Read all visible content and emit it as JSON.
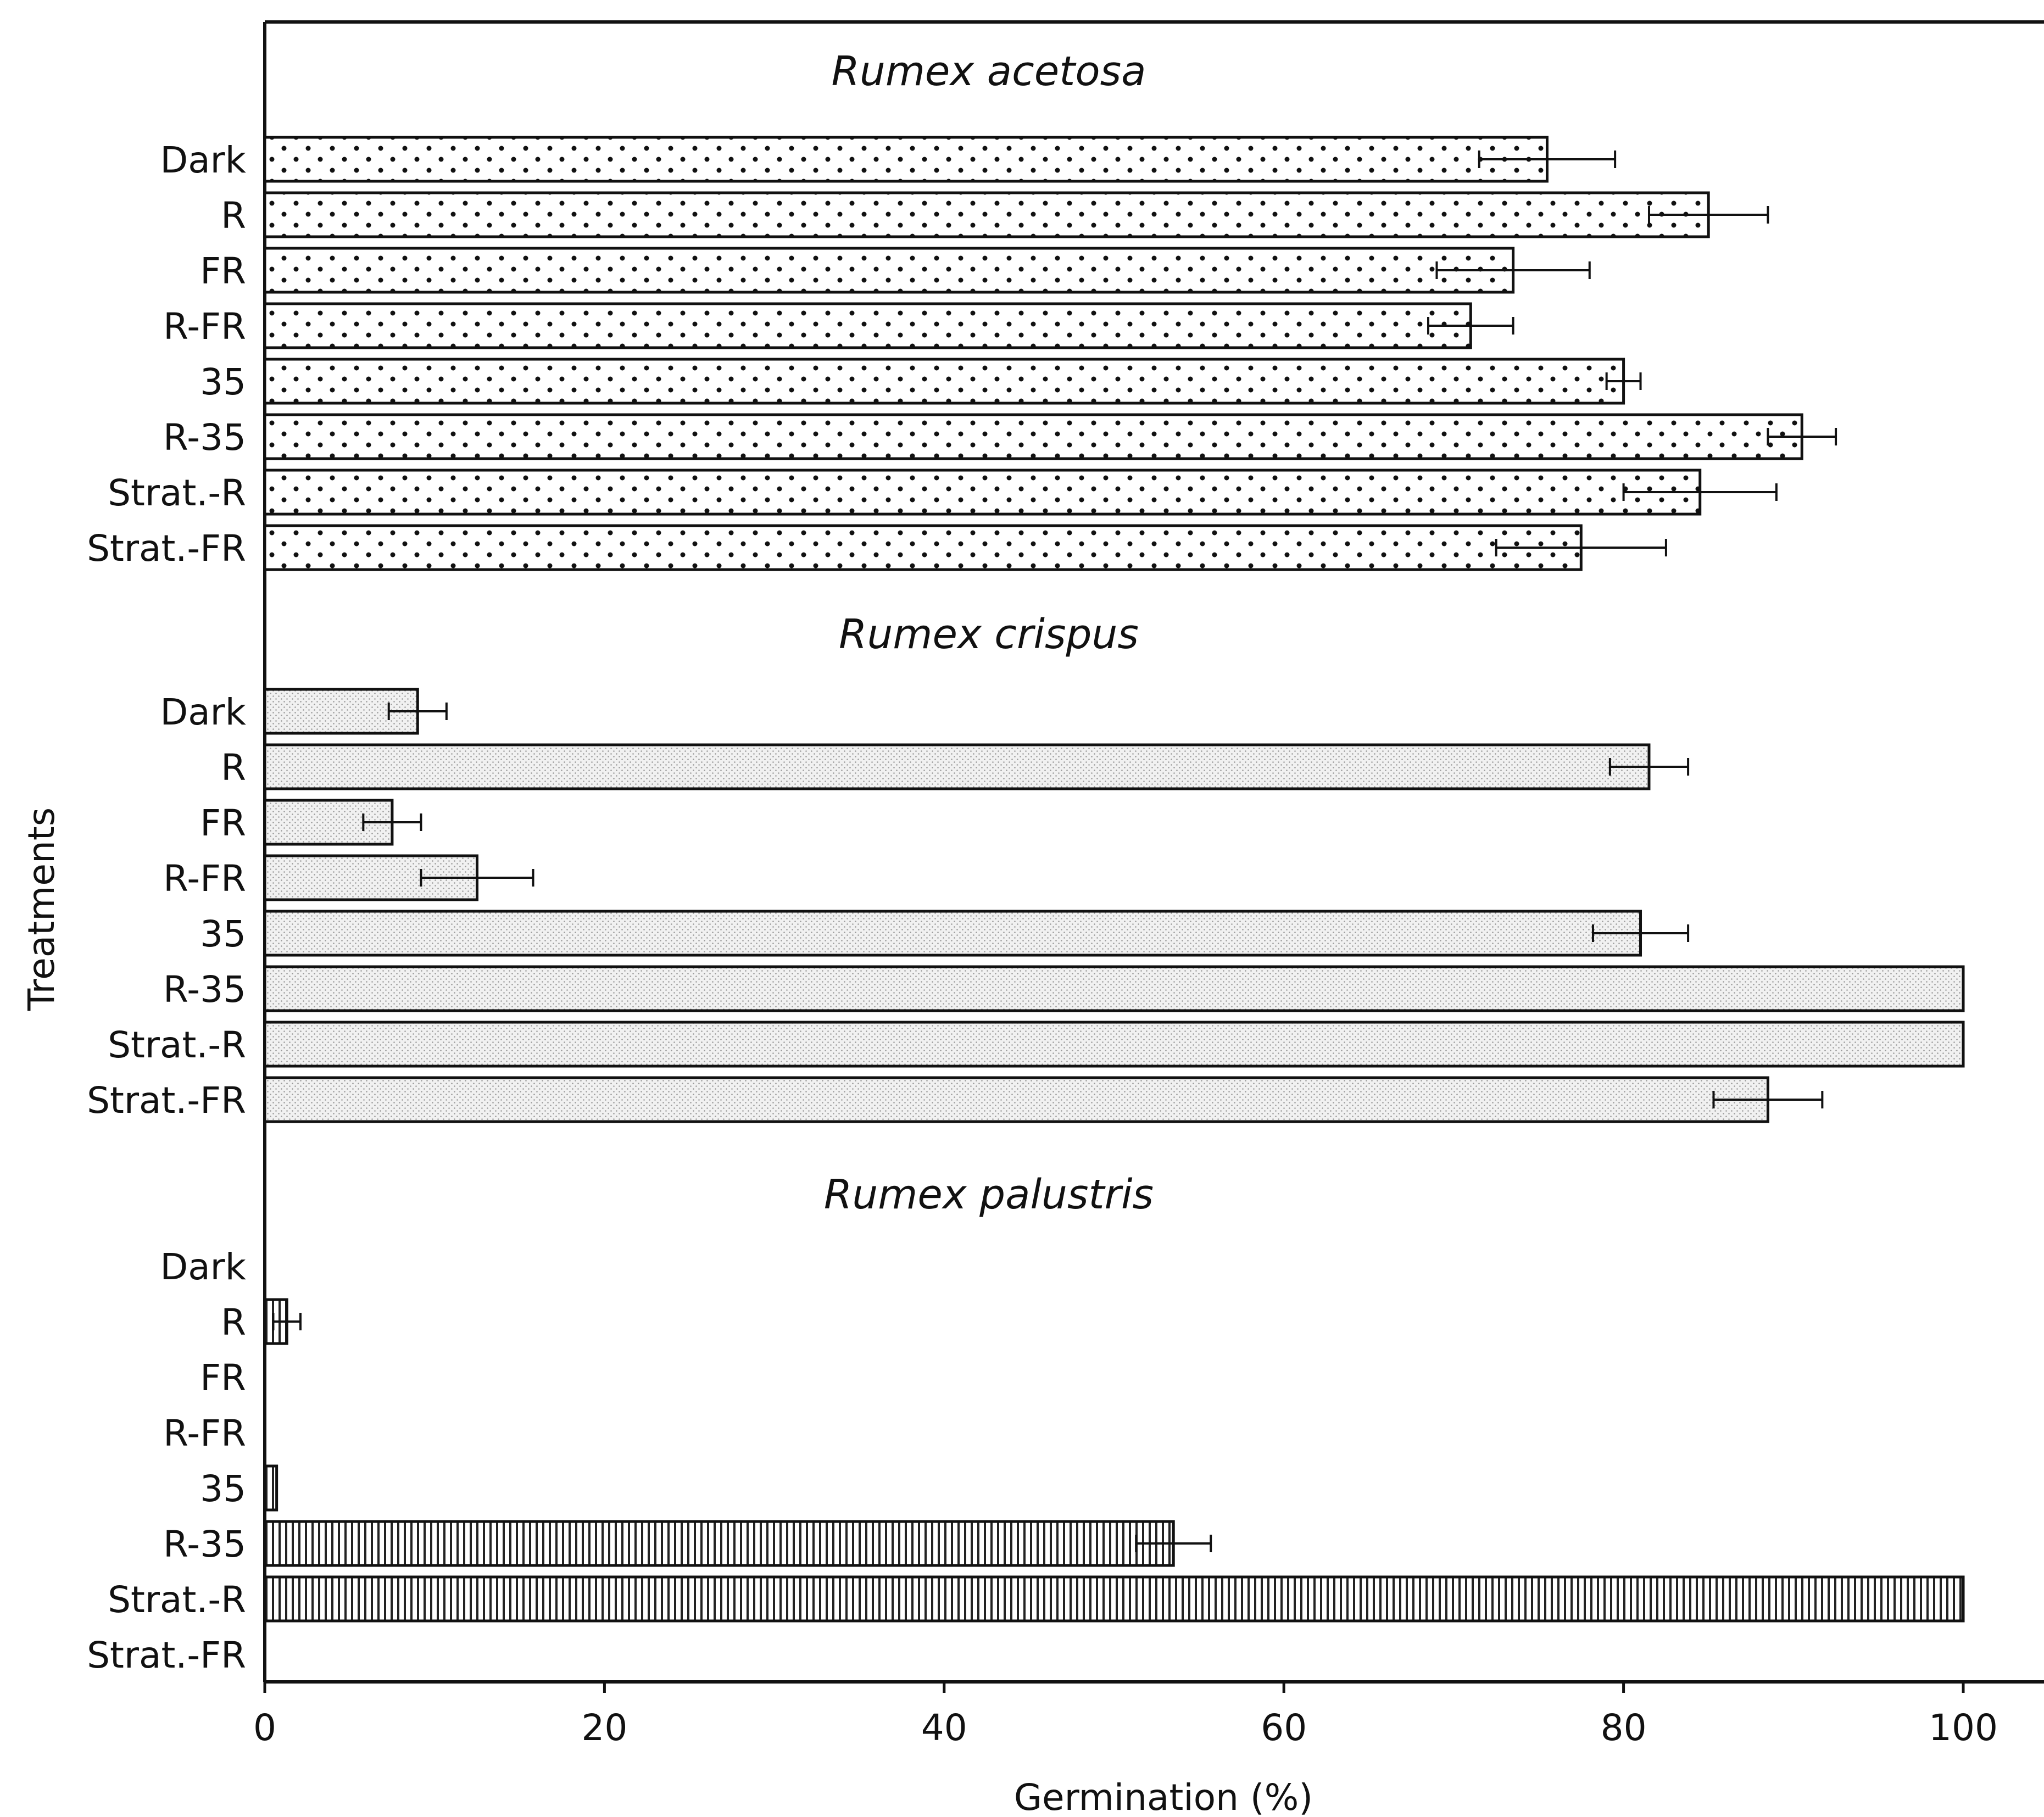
{
  "chart_data": {
    "type": "bar",
    "orientation": "horizontal",
    "xlabel": "Germination (%)",
    "ylabel": "Treatments",
    "xlim": [
      0,
      100
    ],
    "xticks": [
      0,
      20,
      40,
      60,
      80,
      100
    ],
    "grid": false,
    "categories": [
      "Dark",
      "R",
      "FR",
      "R-FR",
      "35",
      "R-35",
      "Strat.-R",
      "Strat.-FR"
    ],
    "panels": [
      {
        "title": "Rumex acetosa",
        "pattern": "dots",
        "values": [
          75.5,
          85,
          73.5,
          71,
          80,
          90.5,
          84.5,
          77.5
        ],
        "errors": [
          4,
          3.5,
          4.5,
          2.5,
          1,
          2,
          4.5,
          5
        ]
      },
      {
        "title": "Rumex crispus",
        "pattern": "fine",
        "values": [
          9,
          81.5,
          7.5,
          12.5,
          81,
          100,
          100,
          88.5
        ],
        "errors": [
          1.7,
          2.3,
          1.7,
          3.3,
          2.8,
          0,
          0,
          3.2
        ]
      },
      {
        "title": "Rumex palustris",
        "pattern": "vertical",
        "values": [
          0,
          1.3,
          0,
          0,
          0.7,
          53.5,
          100,
          0
        ],
        "errors": [
          0,
          0.8,
          0,
          0,
          0,
          2.2,
          0,
          0
        ]
      }
    ]
  }
}
